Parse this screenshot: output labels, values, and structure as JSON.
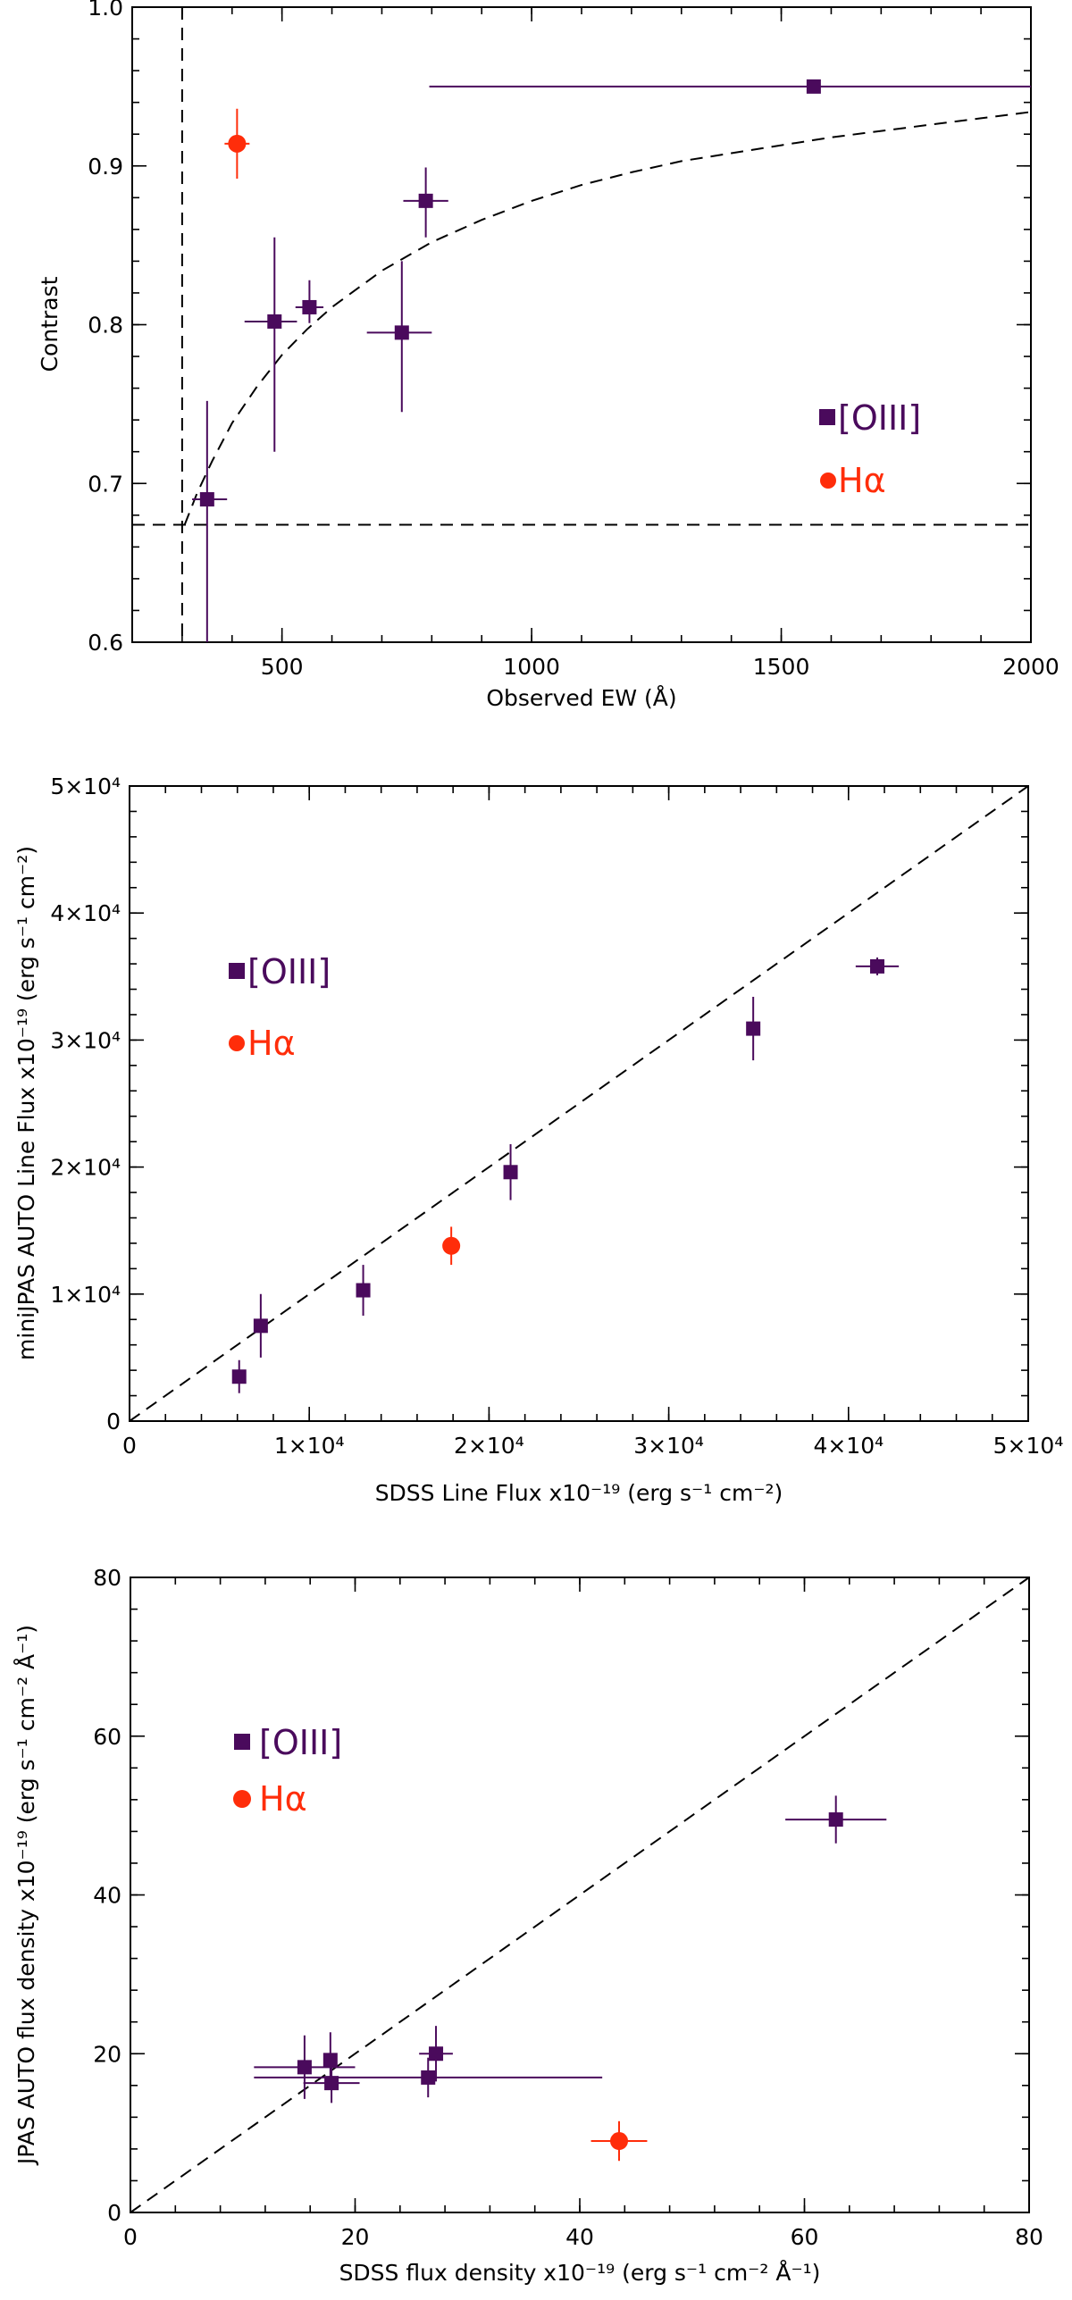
{
  "colors": {
    "oiii": "#4a0a5c",
    "halpha": "#ff2d0a",
    "axis": "#000000"
  },
  "chart_data": [
    {
      "id": "contrast-ew",
      "type": "scatter",
      "title": "",
      "xlabel": "Observed EW (Å)",
      "ylabel": "Contrast",
      "xlim": [
        200,
        2000
      ],
      "ylim": [
        0.6,
        1.0
      ],
      "xticks": [
        500,
        1000,
        1500,
        2000
      ],
      "xtick_labels": [
        "500",
        "1000",
        "1500",
        "2000"
      ],
      "yticks": [
        0.6,
        0.7,
        0.8,
        0.9,
        1.0
      ],
      "ytick_labels": [
        "0.6",
        "0.7",
        "0.8",
        "0.9",
        "1.0"
      ],
      "xminor": 100,
      "yminor": 0.02,
      "reference_lines": [
        {
          "name": "contrast-floor",
          "kind": "hline",
          "y": 0.674
        },
        {
          "name": "ew-threshold",
          "kind": "vline",
          "x": 300
        },
        {
          "name": "model-curve",
          "kind": "curve",
          "points": [
            [
              305,
              0.674
            ],
            [
              330,
              0.694
            ],
            [
              360,
              0.714
            ],
            [
              400,
              0.738
            ],
            [
              450,
              0.761
            ],
            [
              500,
              0.781
            ],
            [
              550,
              0.797
            ],
            [
              600,
              0.811
            ],
            [
              700,
              0.834
            ],
            [
              800,
              0.852
            ],
            [
              900,
              0.866
            ],
            [
              1000,
              0.878
            ],
            [
              1100,
              0.888
            ],
            [
              1200,
              0.896
            ],
            [
              1300,
              0.903
            ],
            [
              1400,
              0.908
            ],
            [
              1500,
              0.913
            ],
            [
              1600,
              0.918
            ],
            [
              1700,
              0.922
            ],
            [
              1800,
              0.926
            ],
            [
              1900,
              0.93
            ],
            [
              2000,
              0.934
            ]
          ]
        }
      ],
      "series": [
        {
          "name": "[OIII]",
          "marker": "square",
          "color": "#4a0a5c",
          "points": [
            {
              "x": 350,
              "y": 0.69,
              "xerr": [
                30,
                40
              ],
              "yerr": [
                0.09,
                0.062
              ]
            },
            {
              "x": 485,
              "y": 0.802,
              "xerr": [
                60,
                45
              ],
              "yerr": [
                0.082,
                0.053
              ]
            },
            {
              "x": 555,
              "y": 0.811,
              "xerr": [
                28,
                28
              ],
              "yerr": [
                0.01,
                0.017
              ]
            },
            {
              "x": 740,
              "y": 0.795,
              "xerr": [
                70,
                60
              ],
              "yerr": [
                0.05,
                0.045
              ]
            },
            {
              "x": 788,
              "y": 0.878,
              "xerr": [
                45,
                45
              ],
              "yerr": [
                0.023,
                0.021
              ]
            },
            {
              "x": 1565,
              "y": 0.95,
              "xerr": [
                770,
                435
              ],
              "yerr": [
                0.004,
                0.004
              ]
            }
          ]
        },
        {
          "name": "Hα",
          "marker": "circle",
          "color": "#ff2d0a",
          "points": [
            {
              "x": 410,
              "y": 0.914,
              "xerr": [
                25,
                25
              ],
              "yerr": [
                0.022,
                0.022
              ]
            }
          ]
        }
      ],
      "legend": {
        "position": "right",
        "oiii_label": "[OIII]",
        "halpha_label": "Hα"
      }
    },
    {
      "id": "line-flux",
      "type": "scatter",
      "title": "",
      "xlabel": "SDSS Line Flux x10⁻¹⁹ (erg s⁻¹ cm⁻²)",
      "ylabel": "miniJPAS AUTO Line Flux x10⁻¹⁹ (erg s⁻¹ cm⁻²)",
      "xlim": [
        0,
        50000
      ],
      "ylim": [
        0,
        50000
      ],
      "xticks": [
        0,
        10000,
        20000,
        30000,
        40000,
        50000
      ],
      "xtick_labels": [
        "0",
        "1×10⁴",
        "2×10⁴",
        "3×10⁴",
        "4×10⁴",
        "5×10⁴"
      ],
      "yticks": [
        0,
        10000,
        20000,
        30000,
        40000,
        50000
      ],
      "ytick_labels": [
        "0",
        "1×10⁴",
        "2×10⁴",
        "3×10⁴",
        "4×10⁴",
        "5×10⁴"
      ],
      "xminor": 2000,
      "yminor": 2000,
      "reference_lines": [
        {
          "name": "one-to-one-line",
          "kind": "curve",
          "points": [
            [
              0,
              0
            ],
            [
              50000,
              50000
            ]
          ]
        }
      ],
      "series": [
        {
          "name": "[OIII]",
          "marker": "square",
          "color": "#4a0a5c",
          "points": [
            {
              "x": 6100,
              "y": 3500,
              "xerr": [
                0,
                0
              ],
              "yerr": [
                1300,
                1300
              ]
            },
            {
              "x": 7300,
              "y": 7500,
              "xerr": [
                0,
                0
              ],
              "yerr": [
                2500,
                2500
              ]
            },
            {
              "x": 13000,
              "y": 10300,
              "xerr": [
                0,
                0
              ],
              "yerr": [
                2000,
                2000
              ]
            },
            {
              "x": 21200,
              "y": 19600,
              "xerr": [
                0,
                0
              ],
              "yerr": [
                2200,
                2200
              ]
            },
            {
              "x": 34700,
              "y": 30900,
              "xerr": [
                0,
                0
              ],
              "yerr": [
                2500,
                2500
              ]
            },
            {
              "x": 41600,
              "y": 35800,
              "xerr": [
                1200,
                1200
              ],
              "yerr": [
                700,
                700
              ]
            }
          ]
        },
        {
          "name": "Hα",
          "marker": "circle",
          "color": "#ff2d0a",
          "points": [
            {
              "x": 17900,
              "y": 13800,
              "xerr": [
                0,
                0
              ],
              "yerr": [
                1500,
                1500
              ]
            }
          ]
        }
      ],
      "legend": {
        "position": "top-left",
        "oiii_label": "[OIII]",
        "halpha_label": "Hα"
      }
    },
    {
      "id": "flux-density",
      "type": "scatter",
      "title": "",
      "xlabel": "SDSS flux density x10⁻¹⁹ (erg s⁻¹ cm⁻² Å⁻¹)",
      "ylabel": "JPAS AUTO flux density x10⁻¹⁹ (erg s⁻¹ cm⁻² Å⁻¹)",
      "xlim": [
        0,
        80
      ],
      "ylim": [
        0,
        80
      ],
      "xticks": [
        0,
        20,
        40,
        60,
        80
      ],
      "xtick_labels": [
        "0",
        "20",
        "40",
        "60",
        "80"
      ],
      "yticks": [
        0,
        20,
        40,
        60,
        80
      ],
      "ytick_labels": [
        "0",
        "20",
        "40",
        "60",
        "80"
      ],
      "xminor": 4,
      "yminor": 4,
      "reference_lines": [
        {
          "name": "one-to-one-line",
          "kind": "curve",
          "points": [
            [
              0,
              0
            ],
            [
              80,
              80
            ]
          ]
        }
      ],
      "series": [
        {
          "name": "[OIII]",
          "marker": "square",
          "color": "#4a0a5c",
          "points": [
            {
              "x": 15.5,
              "y": 18.3,
              "xerr": [
                4.5,
                4.5
              ],
              "yerr": [
                4,
                4
              ]
            },
            {
              "x": 17.8,
              "y": 19.2,
              "xerr": [
                0,
                0
              ],
              "yerr": [
                3.5,
                3.5
              ]
            },
            {
              "x": 17.9,
              "y": 16.3,
              "xerr": [
                2.5,
                2.5
              ],
              "yerr": [
                2.5,
                2.5
              ]
            },
            {
              "x": 26.5,
              "y": 17.0,
              "xerr": [
                15.5,
                15.5
              ],
              "yerr": [
                2.5,
                2.5
              ]
            },
            {
              "x": 27.2,
              "y": 20.0,
              "xerr": [
                1.5,
                1.5
              ],
              "yerr": [
                3.5,
                3.5
              ]
            },
            {
              "x": 62.8,
              "y": 49.5,
              "xerr": [
                4.5,
                4.5
              ],
              "yerr": [
                3,
                3
              ]
            }
          ]
        },
        {
          "name": "Hα",
          "marker": "circle",
          "color": "#ff2d0a",
          "points": [
            {
              "x": 43.5,
              "y": 9.0,
              "xerr": [
                2.5,
                2.5
              ],
              "yerr": [
                2.5,
                2.5
              ]
            }
          ]
        }
      ],
      "legend": {
        "position": "top-left",
        "oiii_label": "[OIII]",
        "halpha_label": "Hα"
      }
    }
  ]
}
